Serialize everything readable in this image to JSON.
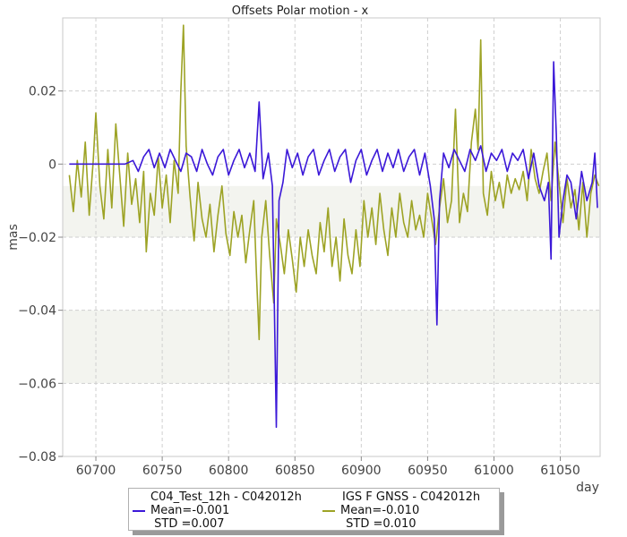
{
  "chart_data": {
    "type": "line",
    "title": "Offsets Polar motion - x",
    "xlabel": "day",
    "ylabel": "mas",
    "xlim": [
      60675,
      61080
    ],
    "ylim": [
      -0.08,
      0.04
    ],
    "xticks": [
      60700,
      60750,
      60800,
      60850,
      60900,
      60950,
      61000,
      61050
    ],
    "xtick_labels": [
      "60700",
      "60750",
      "60800",
      "60850",
      "60900",
      "60950",
      "61000",
      "61050"
    ],
    "yticks": [
      -0.08,
      -0.06,
      -0.04,
      -0.02,
      0,
      0.02
    ],
    "ytick_labels": [
      "−0.08",
      "−0.06",
      "−0.04",
      "−0.02",
      "0",
      "0.02"
    ],
    "grid": true,
    "bands": [
      [
        -0.02,
        -0.006
      ],
      [
        -0.06,
        -0.04
      ]
    ],
    "band_color": "#f3f4ef",
    "legend_position": "bottom",
    "series": [
      {
        "name": "C04_Test_12h - C042012h",
        "color": "#3b18d8",
        "mean_label": "Mean=-0.001",
        "std_label": " STD =0.007",
        "points": [
          [
            60680,
            0
          ],
          [
            60695,
            0
          ],
          [
            60710,
            0
          ],
          [
            60722,
            0
          ],
          [
            60728,
            0.001
          ],
          [
            60732,
            -0.002
          ],
          [
            60736,
            0.002
          ],
          [
            60740,
            0.004
          ],
          [
            60744,
            -0.001
          ],
          [
            60748,
            0.003
          ],
          [
            60752,
            -0.001
          ],
          [
            60756,
            0.004
          ],
          [
            60760,
            0.001
          ],
          [
            60764,
            -0.002
          ],
          [
            60768,
            0.003
          ],
          [
            60772,
            0.002
          ],
          [
            60776,
            -0.002
          ],
          [
            60780,
            0.004
          ],
          [
            60784,
            0
          ],
          [
            60788,
            -0.003
          ],
          [
            60792,
            0.002
          ],
          [
            60796,
            0.004
          ],
          [
            60800,
            -0.003
          ],
          [
            60804,
            0.001
          ],
          [
            60808,
            0.004
          ],
          [
            60812,
            -0.001
          ],
          [
            60816,
            0.003
          ],
          [
            60820,
            -0.002
          ],
          [
            60823,
            0.017
          ],
          [
            60826,
            -0.004
          ],
          [
            60830,
            0.003
          ],
          [
            60833,
            -0.006
          ],
          [
            60836,
            -0.072
          ],
          [
            60838,
            -0.01
          ],
          [
            60841,
            -0.005
          ],
          [
            60844,
            0.004
          ],
          [
            60848,
            -0.001
          ],
          [
            60852,
            0.003
          ],
          [
            60856,
            -0.003
          ],
          [
            60860,
            0.002
          ],
          [
            60864,
            0.004
          ],
          [
            60868,
            -0.003
          ],
          [
            60872,
            0.001
          ],
          [
            60876,
            0.004
          ],
          [
            60880,
            -0.002
          ],
          [
            60884,
            0.002
          ],
          [
            60888,
            0.004
          ],
          [
            60892,
            -0.005
          ],
          [
            60896,
            0.001
          ],
          [
            60900,
            0.004
          ],
          [
            60904,
            -0.003
          ],
          [
            60908,
            0.001
          ],
          [
            60912,
            0.004
          ],
          [
            60916,
            -0.002
          ],
          [
            60920,
            0.003
          ],
          [
            60924,
            -0.001
          ],
          [
            60928,
            0.004
          ],
          [
            60932,
            -0.002
          ],
          [
            60936,
            0.002
          ],
          [
            60940,
            0.004
          ],
          [
            60944,
            -0.003
          ],
          [
            60948,
            0.003
          ],
          [
            60952,
            -0.006
          ],
          [
            60955,
            -0.015
          ],
          [
            60957,
            -0.044
          ],
          [
            60959,
            -0.01
          ],
          [
            60962,
            0.003
          ],
          [
            60966,
            -0.001
          ],
          [
            60970,
            0.004
          ],
          [
            60974,
            0.001
          ],
          [
            60978,
            -0.002
          ],
          [
            60982,
            0.004
          ],
          [
            60986,
            0.001
          ],
          [
            60990,
            0.005
          ],
          [
            60994,
            -0.002
          ],
          [
            60998,
            0.003
          ],
          [
            61002,
            0.001
          ],
          [
            61006,
            0.004
          ],
          [
            61010,
            -0.002
          ],
          [
            61014,
            0.003
          ],
          [
            61018,
            0.001
          ],
          [
            61022,
            0.004
          ],
          [
            61026,
            -0.004
          ],
          [
            61030,
            0.003
          ],
          [
            61034,
            -0.006
          ],
          [
            61038,
            -0.01
          ],
          [
            61041,
            -0.005
          ],
          [
            61043,
            -0.026
          ],
          [
            61045,
            0.028
          ],
          [
            61047,
            0.008
          ],
          [
            61049,
            -0.02
          ],
          [
            61052,
            -0.01
          ],
          [
            61055,
            -0.003
          ],
          [
            61058,
            -0.005
          ],
          [
            61062,
            -0.015
          ],
          [
            61066,
            -0.002
          ],
          [
            61070,
            -0.01
          ],
          [
            61074,
            -0.005
          ],
          [
            61076,
            0.003
          ],
          [
            61078,
            -0.012
          ]
        ]
      },
      {
        "name": "IGS F GNSS - C042012h",
        "color": "#9da325",
        "mean_label": "Mean=-0.010",
        "std_label": " STD =0.010",
        "points": [
          [
            60680,
            -0.003
          ],
          [
            60683,
            -0.013
          ],
          [
            60686,
            0.001
          ],
          [
            60689,
            -0.009
          ],
          [
            60692,
            0.006
          ],
          [
            60695,
            -0.014
          ],
          [
            60698,
            0.001
          ],
          [
            60700,
            0.014
          ],
          [
            60703,
            -0.006
          ],
          [
            60706,
            -0.015
          ],
          [
            60709,
            0.004
          ],
          [
            60712,
            -0.012
          ],
          [
            60715,
            0.011
          ],
          [
            60718,
            -0.003
          ],
          [
            60721,
            -0.017
          ],
          [
            60724,
            0.003
          ],
          [
            60727,
            -0.011
          ],
          [
            60730,
            -0.004
          ],
          [
            60733,
            -0.016
          ],
          [
            60736,
            -0.002
          ],
          [
            60738,
            -0.024
          ],
          [
            60741,
            -0.008
          ],
          [
            60744,
            -0.014
          ],
          [
            60747,
            0.002
          ],
          [
            60750,
            -0.012
          ],
          [
            60753,
            -0.003
          ],
          [
            60756,
            -0.016
          ],
          [
            60759,
            0.001
          ],
          [
            60762,
            -0.008
          ],
          [
            60764,
            0.02
          ],
          [
            60766,
            0.038
          ],
          [
            60768,
            0.005
          ],
          [
            60771,
            -0.009
          ],
          [
            60774,
            -0.021
          ],
          [
            60777,
            -0.005
          ],
          [
            60780,
            -0.015
          ],
          [
            60783,
            -0.02
          ],
          [
            60786,
            -0.011
          ],
          [
            60789,
            -0.024
          ],
          [
            60792,
            -0.014
          ],
          [
            60795,
            -0.006
          ],
          [
            60798,
            -0.019
          ],
          [
            60801,
            -0.025
          ],
          [
            60804,
            -0.013
          ],
          [
            60807,
            -0.02
          ],
          [
            60810,
            -0.014
          ],
          [
            60813,
            -0.027
          ],
          [
            60816,
            -0.018
          ],
          [
            60819,
            -0.01
          ],
          [
            60821,
            -0.03
          ],
          [
            60823,
            -0.048
          ],
          [
            60825,
            -0.02
          ],
          [
            60828,
            -0.01
          ],
          [
            60831,
            -0.025
          ],
          [
            60834,
            -0.038
          ],
          [
            60836,
            -0.015
          ],
          [
            60839,
            -0.022
          ],
          [
            60842,
            -0.03
          ],
          [
            60845,
            -0.018
          ],
          [
            60848,
            -0.026
          ],
          [
            60851,
            -0.035
          ],
          [
            60854,
            -0.02
          ],
          [
            60857,
            -0.028
          ],
          [
            60860,
            -0.018
          ],
          [
            60863,
            -0.025
          ],
          [
            60866,
            -0.03
          ],
          [
            60869,
            -0.016
          ],
          [
            60872,
            -0.024
          ],
          [
            60875,
            -0.012
          ],
          [
            60878,
            -0.028
          ],
          [
            60881,
            -0.02
          ],
          [
            60884,
            -0.032
          ],
          [
            60887,
            -0.015
          ],
          [
            60890,
            -0.025
          ],
          [
            60893,
            -0.03
          ],
          [
            60896,
            -0.018
          ],
          [
            60899,
            -0.028
          ],
          [
            60902,
            -0.01
          ],
          [
            60905,
            -0.02
          ],
          [
            60908,
            -0.012
          ],
          [
            60911,
            -0.022
          ],
          [
            60914,
            -0.008
          ],
          [
            60917,
            -0.018
          ],
          [
            60920,
            -0.025
          ],
          [
            60923,
            -0.012
          ],
          [
            60926,
            -0.02
          ],
          [
            60929,
            -0.008
          ],
          [
            60932,
            -0.016
          ],
          [
            60935,
            -0.02
          ],
          [
            60938,
            -0.01
          ],
          [
            60941,
            -0.018
          ],
          [
            60944,
            -0.014
          ],
          [
            60947,
            -0.02
          ],
          [
            60950,
            -0.008
          ],
          [
            60953,
            -0.015
          ],
          [
            60956,
            -0.022
          ],
          [
            60959,
            -0.012
          ],
          [
            60962,
            -0.004
          ],
          [
            60965,
            -0.016
          ],
          [
            60968,
            -0.01
          ],
          [
            60971,
            0.015
          ],
          [
            60974,
            -0.016
          ],
          [
            60977,
            -0.008
          ],
          [
            60980,
            -0.013
          ],
          [
            60983,
            0.006
          ],
          [
            60986,
            0.015
          ],
          [
            60988,
            0.004
          ],
          [
            60990,
            0.034
          ],
          [
            60992,
            -0.008
          ],
          [
            60995,
            -0.014
          ],
          [
            60998,
            -0.002
          ],
          [
            61001,
            -0.01
          ],
          [
            61004,
            -0.005
          ],
          [
            61007,
            -0.012
          ],
          [
            61010,
            -0.003
          ],
          [
            61013,
            -0.008
          ],
          [
            61016,
            -0.004
          ],
          [
            61019,
            -0.007
          ],
          [
            61022,
            -0.002
          ],
          [
            61025,
            -0.01
          ],
          [
            61028,
            0.004
          ],
          [
            61031,
            -0.004
          ],
          [
            61034,
            -0.008
          ],
          [
            61037,
            -0.002
          ],
          [
            61040,
            0.003
          ],
          [
            61043,
            -0.01
          ],
          [
            61046,
            0.006
          ],
          [
            61049,
            -0.005
          ],
          [
            61052,
            -0.016
          ],
          [
            61055,
            -0.004
          ],
          [
            61058,
            -0.012
          ],
          [
            61061,
            -0.007
          ],
          [
            61064,
            -0.018
          ],
          [
            61067,
            -0.005
          ],
          [
            61070,
            -0.02
          ],
          [
            61073,
            -0.008
          ],
          [
            61076,
            -0.003
          ],
          [
            61079,
            -0.006
          ]
        ]
      }
    ]
  }
}
